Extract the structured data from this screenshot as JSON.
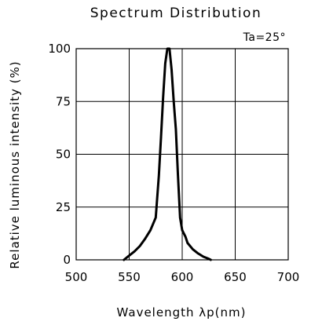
{
  "chart_data": {
    "type": "line",
    "title": "Spectrum Distribution",
    "xlabel": "Wavelength λp(nm)",
    "ylabel": "Relative luminous intensity (%)",
    "annotation": "Ta=25°",
    "xlim": [
      500,
      700
    ],
    "ylim": [
      0,
      100
    ],
    "xticks": [
      "500",
      "550",
      "600",
      "650",
      "700"
    ],
    "yticks": [
      "0",
      "25",
      "50",
      "75",
      "100"
    ],
    "grid": true,
    "color": "#000000",
    "series": [
      {
        "x": [
          545,
          550,
          555,
          560,
          565,
          570,
          575,
          578,
          580,
          582,
          584,
          586,
          588,
          590,
          592,
          594,
          596,
          598,
          600,
          603,
          605,
          610,
          615,
          620,
          625,
          627
        ],
        "y": [
          0,
          2,
          4,
          6.5,
          10,
          14,
          20,
          40,
          58,
          77,
          93,
          100,
          100,
          90,
          75,
          62,
          40,
          20,
          14,
          11,
          8,
          5,
          3,
          1.5,
          0.5,
          0
        ]
      }
    ]
  }
}
